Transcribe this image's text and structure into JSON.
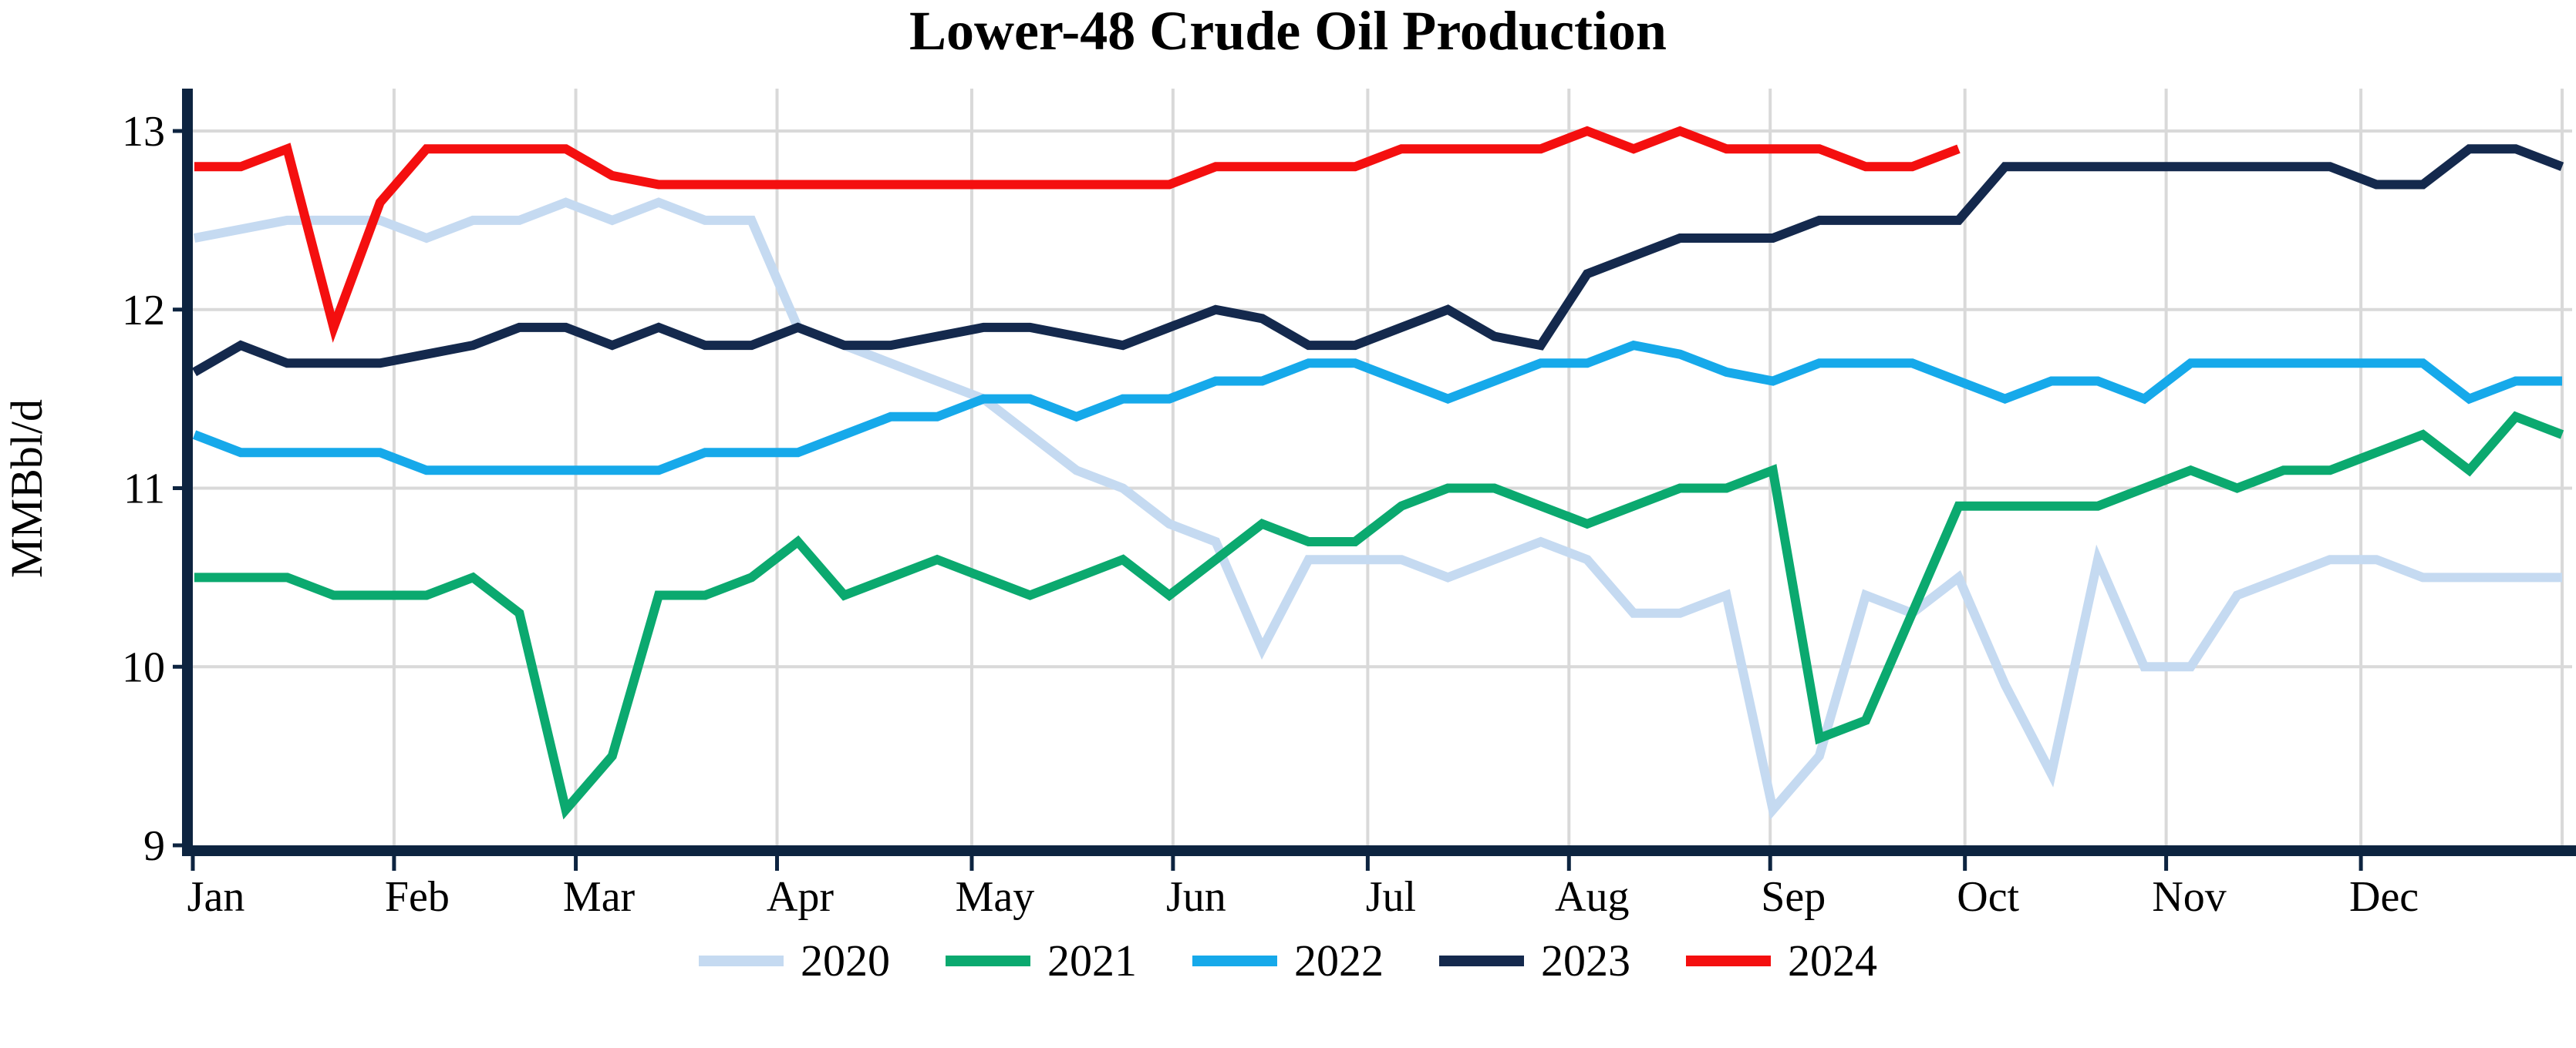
{
  "title": "Lower-48 Crude Oil Production",
  "chart_data": {
    "type": "line",
    "title": "Lower-48 Crude Oil Production",
    "xlabel": "",
    "ylabel": "MMBbl/d",
    "ylim": [
      9,
      13
    ],
    "y_ticks": [
      13,
      12,
      11,
      10,
      9
    ],
    "x_tick_labels": [
      "Jan",
      "Feb",
      "Mar",
      "Apr",
      "May",
      "Jun",
      "Jul",
      "Aug",
      "Sep",
      "Oct",
      "Nov",
      "Dec"
    ],
    "x_unit": "weekly observations, Jan through Dec",
    "n_points": 52,
    "grid": true,
    "legend_position": "bottom",
    "series": [
      {
        "name": "2020",
        "color": "#c5daf1",
        "values": [
          12.4,
          12.45,
          12.5,
          12.5,
          12.5,
          12.4,
          12.5,
          12.5,
          12.6,
          12.5,
          12.6,
          12.5,
          12.5,
          11.9,
          11.8,
          11.7,
          11.6,
          11.5,
          11.3,
          11.1,
          11.0,
          10.8,
          10.7,
          10.1,
          10.6,
          10.6,
          10.6,
          10.5,
          10.6,
          10.7,
          10.6,
          10.3,
          10.3,
          10.4,
          9.2,
          9.5,
          10.4,
          10.3,
          10.5,
          9.9,
          9.4,
          10.6,
          10.0,
          10.0,
          10.4,
          10.5,
          10.6,
          10.6,
          10.5,
          10.5,
          10.5,
          10.5
        ]
      },
      {
        "name": "2021",
        "color": "#0ba96f",
        "values": [
          10.5,
          10.5,
          10.5,
          10.4,
          10.4,
          10.4,
          10.5,
          10.3,
          9.2,
          9.5,
          10.4,
          10.4,
          10.5,
          10.7,
          10.4,
          10.5,
          10.6,
          10.5,
          10.4,
          10.5,
          10.6,
          10.4,
          10.6,
          10.8,
          10.7,
          10.7,
          10.9,
          11.0,
          11.0,
          10.9,
          10.8,
          10.9,
          11.0,
          11.0,
          11.1,
          9.6,
          9.7,
          10.3,
          10.9,
          10.9,
          10.9,
          10.9,
          11.0,
          11.1,
          11.0,
          11.1,
          11.1,
          11.2,
          11.3,
          11.1,
          11.4,
          11.3
        ]
      },
      {
        "name": "2022",
        "color": "#16a9ea",
        "values": [
          11.3,
          11.2,
          11.2,
          11.2,
          11.2,
          11.1,
          11.1,
          11.1,
          11.1,
          11.1,
          11.1,
          11.2,
          11.2,
          11.2,
          11.3,
          11.4,
          11.4,
          11.5,
          11.5,
          11.4,
          11.5,
          11.5,
          11.6,
          11.6,
          11.7,
          11.7,
          11.6,
          11.5,
          11.6,
          11.7,
          11.7,
          11.8,
          11.75,
          11.65,
          11.6,
          11.7,
          11.7,
          11.7,
          11.6,
          11.5,
          11.6,
          11.6,
          11.5,
          11.7,
          11.7,
          11.7,
          11.7,
          11.7,
          11.7,
          11.5,
          11.6,
          11.6
        ]
      },
      {
        "name": "2023",
        "color": "#14294d",
        "values": [
          11.65,
          11.8,
          11.7,
          11.7,
          11.7,
          11.75,
          11.8,
          11.9,
          11.9,
          11.8,
          11.9,
          11.8,
          11.8,
          11.9,
          11.8,
          11.8,
          11.85,
          11.9,
          11.9,
          11.85,
          11.8,
          11.9,
          12.0,
          11.95,
          11.8,
          11.8,
          11.9,
          12.0,
          11.85,
          11.8,
          12.2,
          12.3,
          12.4,
          12.4,
          12.4,
          12.5,
          12.5,
          12.5,
          12.5,
          12.8,
          12.8,
          12.8,
          12.8,
          12.8,
          12.8,
          12.8,
          12.8,
          12.7,
          12.7,
          12.9,
          12.9,
          12.8
        ]
      },
      {
        "name": "2024",
        "color": "#f40f0f",
        "values": [
          12.8,
          12.8,
          12.9,
          11.9,
          12.6,
          12.9,
          12.9,
          12.9,
          12.9,
          12.75,
          12.7,
          12.7,
          12.7,
          12.7,
          12.7,
          12.7,
          12.7,
          12.7,
          12.7,
          12.7,
          12.7,
          12.7,
          12.8,
          12.8,
          12.8,
          12.8,
          12.9,
          12.9,
          12.9,
          12.9,
          13.0,
          12.9,
          13.0,
          12.9,
          12.9,
          12.9,
          12.8,
          12.8,
          12.9
        ]
      }
    ]
  },
  "style": {
    "axis_color": "#0d2440",
    "grid_color": "#d9d9d9",
    "background": "#ffffff"
  }
}
